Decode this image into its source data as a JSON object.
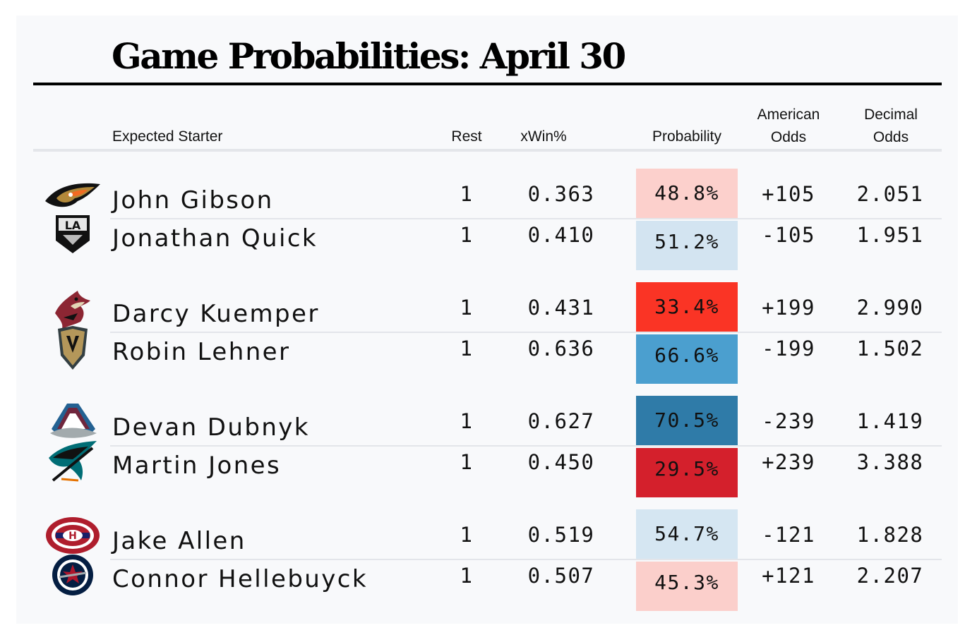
{
  "title": "Game Probabilities: April 30",
  "headers": {
    "starter": "Expected Starter",
    "rest": "Rest",
    "xwin": "xWin%",
    "probability": "Probability",
    "american_line1": "American",
    "american_line2": "Odds",
    "decimal_line1": "Decimal",
    "decimal_line2": "Odds"
  },
  "colors": {
    "prob_48_8": "#fcd0cc",
    "prob_51_2": "#d3e4f1",
    "prob_33_4": "#fa3425",
    "prob_66_6": "#4b9fcf",
    "prob_70_5": "#2f7ba8",
    "prob_29_5": "#d4202c",
    "prob_54_7": "#d5e6f2",
    "prob_45_3": "#fbcfcb"
  },
  "games": [
    {
      "teams": [
        {
          "logo": "ducks-icon",
          "starter": "John Gibson",
          "rest": "1",
          "xwin": "0.363",
          "probability": "48.8%",
          "american": "+105",
          "decimal": "2.051",
          "color": "#fcd0cc"
        },
        {
          "logo": "kings-icon",
          "starter": "Jonathan Quick",
          "rest": "1",
          "xwin": "0.410",
          "probability": "51.2%",
          "american": "-105",
          "decimal": "1.951",
          "color": "#d3e4f1"
        }
      ]
    },
    {
      "teams": [
        {
          "logo": "coyotes-icon",
          "starter": "Darcy Kuemper",
          "rest": "1",
          "xwin": "0.431",
          "probability": "33.4%",
          "american": "+199",
          "decimal": "2.990",
          "color": "#fa3425"
        },
        {
          "logo": "golden-knights-icon",
          "starter": "Robin Lehner",
          "rest": "1",
          "xwin": "0.636",
          "probability": "66.6%",
          "american": "-199",
          "decimal": "1.502",
          "color": "#4b9fcf"
        }
      ]
    },
    {
      "teams": [
        {
          "logo": "avalanche-icon",
          "starter": "Devan Dubnyk",
          "rest": "1",
          "xwin": "0.627",
          "probability": "70.5%",
          "american": "-239",
          "decimal": "1.419",
          "color": "#2f7ba8"
        },
        {
          "logo": "sharks-icon",
          "starter": "Martin Jones",
          "rest": "1",
          "xwin": "0.450",
          "probability": "29.5%",
          "american": "+239",
          "decimal": "3.388",
          "color": "#d4202c"
        }
      ]
    },
    {
      "teams": [
        {
          "logo": "canadiens-icon",
          "starter": "Jake Allen",
          "rest": "1",
          "xwin": "0.519",
          "probability": "54.7%",
          "american": "-121",
          "decimal": "1.828",
          "color": "#d5e6f2"
        },
        {
          "logo": "jets-icon",
          "starter": "Connor Hellebuyck",
          "rest": "1",
          "xwin": "0.507",
          "probability": "45.3%",
          "american": "+121",
          "decimal": "2.207",
          "color": "#fbcfcb"
        }
      ]
    }
  ]
}
